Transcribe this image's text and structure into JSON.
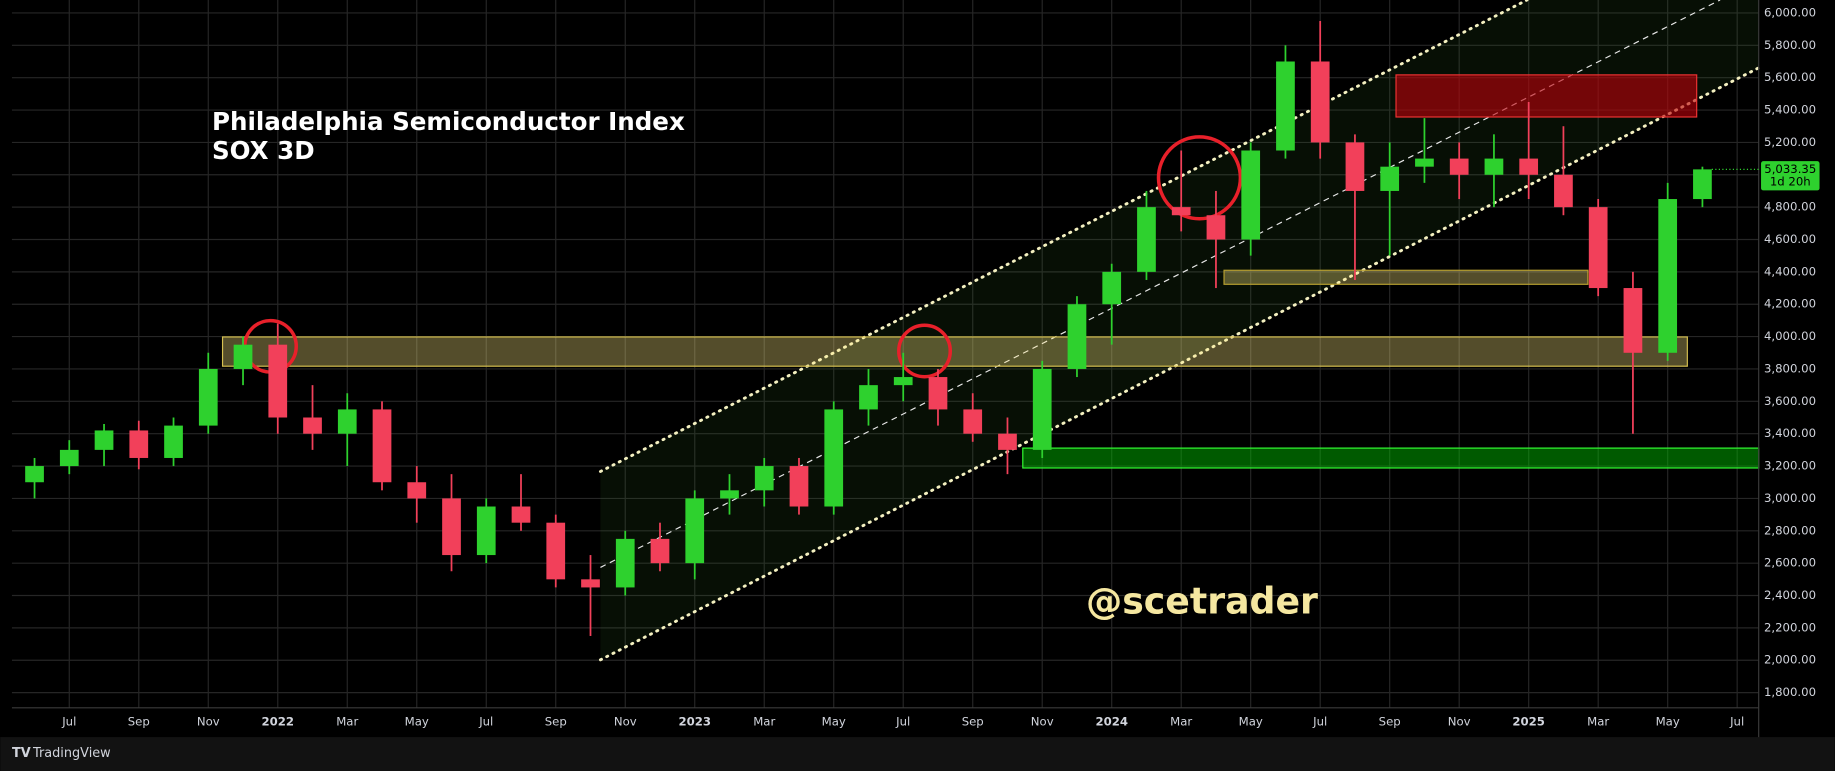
{
  "chart_data": {
    "type": "candlestick",
    "title": "Philadelphia Semiconductor Index",
    "subtitle": "SOX 3D",
    "watermark": "@scetrader",
    "countdown": "1d 20h",
    "last_price_label": "5,033.35",
    "brand": "TradingView",
    "up_color": "#2ed12e",
    "down_color": "#f2405a",
    "grid": true,
    "categories": [
      null,
      "Jul",
      null,
      "Sep",
      null,
      "Nov",
      null,
      "2022",
      null,
      "Mar",
      null,
      "May",
      null,
      "Jul",
      null,
      "Sep",
      null,
      "Nov",
      null,
      "2023",
      null,
      "Mar",
      null,
      "May",
      null,
      "Jul",
      null,
      "Sep",
      null,
      "Nov",
      null,
      "2024",
      null,
      "Mar",
      null,
      "May",
      null,
      "Jul",
      null,
      "Sep",
      null,
      "Nov",
      null,
      "2025",
      null,
      "Mar",
      null,
      "May",
      null,
      "Jul"
    ],
    "open": [
      3100,
      3200,
      3300,
      3420,
      3250,
      3450,
      3800,
      3950,
      3500,
      3400,
      3550,
      3100,
      3000,
      2650,
      2950,
      2850,
      2500,
      2450,
      2750,
      2600,
      3000,
      3050,
      3200,
      2950,
      3550,
      3700,
      3750,
      3550,
      3400,
      3300,
      3800,
      4200,
      4400,
      4800,
      4750,
      4600,
      5150,
      5700,
      5200,
      4900,
      5050,
      5100,
      5000,
      5100,
      5000,
      4800,
      4300,
      3900,
      4850,
      null
    ],
    "high": [
      3250,
      3360,
      3460,
      3480,
      3500,
      3900,
      4000,
      4080,
      3700,
      3650,
      3600,
      3200,
      3150,
      3000,
      3150,
      2900,
      2650,
      2800,
      2850,
      3050,
      3150,
      3250,
      3250,
      3600,
      3800,
      3900,
      3800,
      3650,
      3500,
      3850,
      4250,
      4450,
      4900,
      5150,
      4900,
      5200,
      5800,
      5950,
      5250,
      5200,
      5350,
      5200,
      5250,
      5450,
      5300,
      4850,
      4400,
      4950,
      5050,
      null
    ],
    "low": [
      3000,
      3150,
      3200,
      3180,
      3200,
      3400,
      3700,
      3400,
      3300,
      3200,
      3050,
      2850,
      2550,
      2600,
      2800,
      2450,
      2150,
      2400,
      2550,
      2500,
      2900,
      2950,
      2900,
      2900,
      3450,
      3600,
      3450,
      3350,
      3150,
      3250,
      3750,
      3950,
      4350,
      4650,
      4300,
      4500,
      5100,
      5100,
      4350,
      4500,
      4950,
      4850,
      4800,
      4850,
      4750,
      4250,
      3400,
      3850,
      4800,
      null
    ],
    "close": [
      3200,
      3300,
      3420,
      3250,
      3450,
      3800,
      3950,
      3500,
      3400,
      3550,
      3100,
      3000,
      2650,
      2950,
      2850,
      2500,
      2450,
      2750,
      2600,
      3000,
      3050,
      3200,
      2950,
      3550,
      3700,
      3750,
      3550,
      3400,
      3300,
      3800,
      4200,
      4400,
      4800,
      4750,
      4600,
      5150,
      5700,
      5200,
      4900,
      5050,
      5100,
      5000,
      5100,
      5000,
      4800,
      4300,
      3900,
      4850,
      5033.35,
      null
    ],
    "ylim": [
      1706,
      6080
    ],
    "yticks": [
      {
        "value": 1800,
        "label": "1,800.00"
      },
      {
        "value": 2000,
        "label": "2,000.00"
      },
      {
        "value": 2200,
        "label": "2,200.00"
      },
      {
        "value": 2400,
        "label": "2,400.00"
      },
      {
        "value": 2600,
        "label": "2,600.00"
      },
      {
        "value": 2800,
        "label": "2,800.00"
      },
      {
        "value": 3000,
        "label": "3,000.00"
      },
      {
        "value": 3200,
        "label": "3,200.00"
      },
      {
        "value": 3400,
        "label": "3,400.00"
      },
      {
        "value": 3600,
        "label": "3,600.00"
      },
      {
        "value": 3800,
        "label": "3,800.00"
      },
      {
        "value": 4000,
        "label": "4,000.00"
      },
      {
        "value": 4200,
        "label": "4,200.00"
      },
      {
        "value": 4400,
        "label": "4,400.00"
      },
      {
        "value": 4600,
        "label": "4,600.00"
      },
      {
        "value": 4800,
        "label": "4,800.00"
      },
      {
        "value": 5000,
        "label": "5,000.00"
      },
      {
        "value": 5200,
        "label": "5,200.00"
      },
      {
        "value": 5400,
        "label": "5,400.00"
      },
      {
        "value": 5600,
        "label": "5,600.00"
      },
      {
        "value": 5800,
        "label": "5,800.00"
      },
      {
        "value": 6000,
        "label": "6,000.00"
      }
    ]
  }
}
